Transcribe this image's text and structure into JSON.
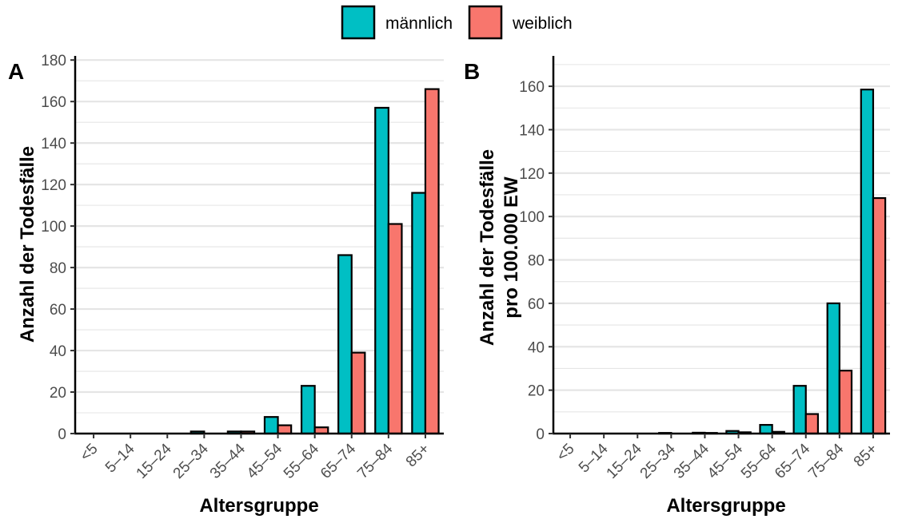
{
  "legend": [
    {
      "label": "männlich",
      "color": "#00BFC4"
    },
    {
      "label": "weiblich",
      "color": "#F8766D"
    }
  ],
  "chart_data": [
    {
      "type": "bar",
      "panel": "A",
      "categories": [
        "<5",
        "5–14",
        "15–24",
        "25–34",
        "35–44",
        "45–54",
        "55–64",
        "65–74",
        "75–84",
        "85+"
      ],
      "series": [
        {
          "name": "männlich",
          "values": [
            0,
            0,
            0,
            1,
            1,
            8,
            23,
            86,
            157,
            116
          ]
        },
        {
          "name": "weiblich",
          "values": [
            0,
            0,
            0,
            0,
            1,
            4,
            3,
            39,
            101,
            166
          ]
        }
      ],
      "xlabel": "Altersgruppe",
      "ylabel": "Anzahl der Todesfälle",
      "ylim": [
        0,
        182
      ],
      "yticks": [
        0,
        20,
        40,
        60,
        80,
        100,
        120,
        140,
        160,
        180
      ],
      "grid": true
    },
    {
      "type": "bar",
      "panel": "B",
      "categories": [
        "<5",
        "5–14",
        "15–24",
        "25–34",
        "35–44",
        "45–54",
        "55–64",
        "65–74",
        "75–84",
        "85+"
      ],
      "series": [
        {
          "name": "männlich",
          "values": [
            0,
            0,
            0,
            0.3,
            0.4,
            1.2,
            4,
            22,
            60,
            158.5
          ]
        },
        {
          "name": "weiblich",
          "values": [
            0,
            0,
            0,
            0,
            0.3,
            0.6,
            0.8,
            9,
            29,
            108.5
          ]
        }
      ],
      "xlabel": "Altersgruppe",
      "ylabel": [
        "Anzahl der Todesfälle",
        "pro 100.000 EW"
      ],
      "ylim": [
        0,
        174
      ],
      "yticks": [
        0,
        20,
        40,
        60,
        80,
        100,
        120,
        140,
        160
      ],
      "grid": true
    }
  ]
}
